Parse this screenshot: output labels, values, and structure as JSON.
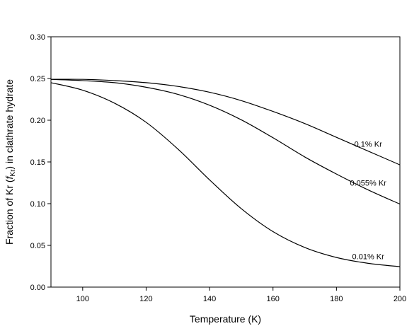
{
  "chart_data": {
    "type": "line",
    "xlabel": "Temperature (K)",
    "ylabel": {
      "prefix": "Fraction of Kr (",
      "italic": "f",
      "sub": "Kr",
      "suffix": ") in clathrate hydrate"
    },
    "xlim": [
      90,
      200
    ],
    "ylim": [
      0,
      0.3
    ],
    "xticks": [
      100,
      120,
      140,
      160,
      180,
      200
    ],
    "yticks": [
      0.0,
      0.05,
      0.1,
      0.15,
      0.2,
      0.25,
      0.3
    ],
    "grid": false,
    "x": [
      90,
      100,
      110,
      120,
      130,
      140,
      150,
      160,
      170,
      180,
      190,
      200
    ],
    "series": [
      {
        "name": "0.1% Kr",
        "values": [
          0.249,
          0.249,
          0.2475,
          0.245,
          0.2405,
          0.2335,
          0.2235,
          0.2105,
          0.196,
          0.1795,
          0.163,
          0.1465
        ]
      },
      {
        "name": "0.055% Kr",
        "values": [
          0.249,
          0.2475,
          0.245,
          0.2395,
          0.231,
          0.218,
          0.2005,
          0.179,
          0.156,
          0.1355,
          0.1165,
          0.0995
        ]
      },
      {
        "name": "0.01% Kr",
        "values": [
          0.245,
          0.236,
          0.2205,
          0.1975,
          0.1655,
          0.1285,
          0.094,
          0.0665,
          0.0475,
          0.0355,
          0.0285,
          0.0245
        ]
      }
    ]
  }
}
